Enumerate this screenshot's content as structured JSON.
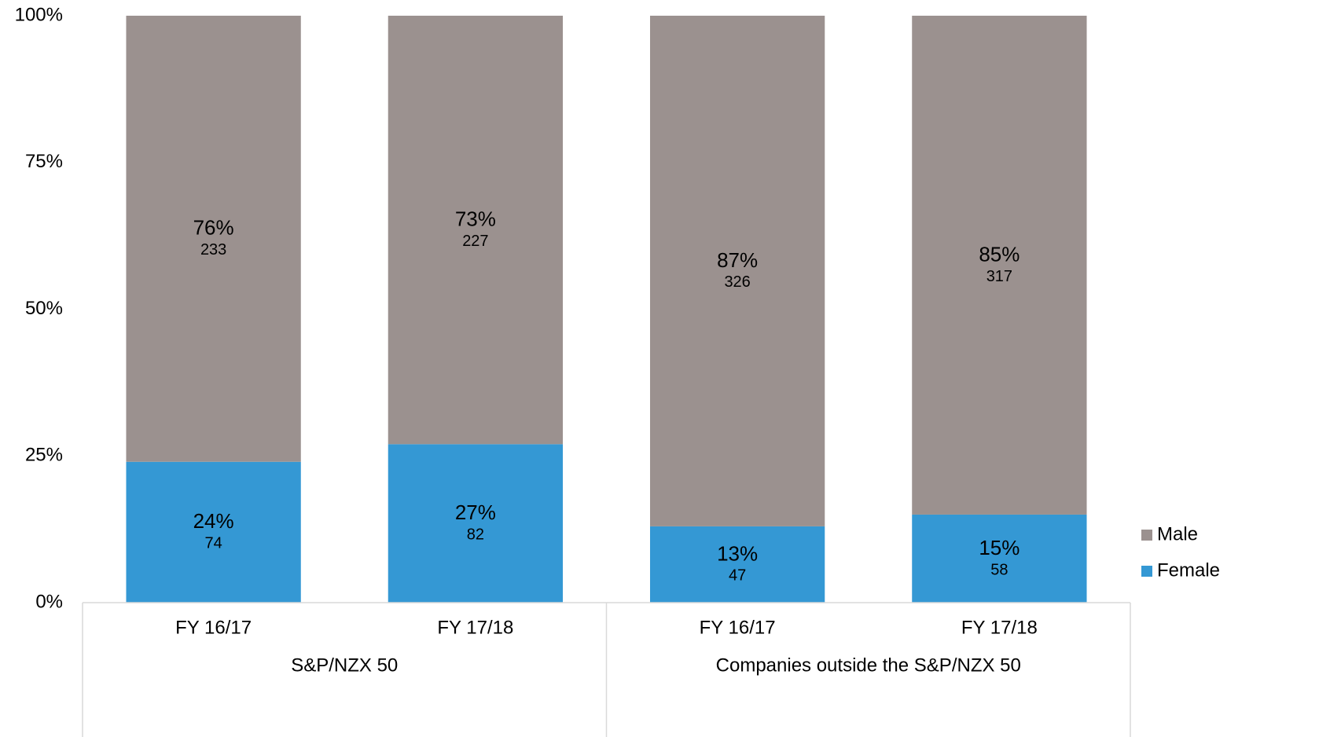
{
  "chart_data": {
    "type": "stacked_bar",
    "categories": [
      "FY 16/17",
      "FY 17/18",
      "FY 16/17",
      "FY 17/18"
    ],
    "group_labels": [
      "S&P/NZX 50",
      "Companies outside the S&P/NZX 50"
    ],
    "series": [
      {
        "name": "Female",
        "color": "#3498d4",
        "values": [
          24,
          27,
          13,
          15
        ],
        "value_labels": [
          "24%",
          "27%",
          "13%",
          "15%"
        ],
        "counts": [
          74,
          82,
          47,
          58
        ]
      },
      {
        "name": "Male",
        "color": "#9b918f",
        "values": [
          76,
          73,
          87,
          85
        ],
        "value_labels": [
          "76%",
          "73%",
          "87%",
          "85%"
        ],
        "counts": [
          233,
          227,
          326,
          317
        ]
      }
    ],
    "ylim": [
      0,
      100
    ],
    "yticks": [
      {
        "value": 0,
        "label": "0%"
      },
      {
        "value": 25,
        "label": "25%"
      },
      {
        "value": 50,
        "label": "50%"
      },
      {
        "value": 75,
        "label": "75%"
      },
      {
        "value": 100,
        "label": "100%"
      }
    ],
    "grid": false,
    "legend": "right"
  }
}
